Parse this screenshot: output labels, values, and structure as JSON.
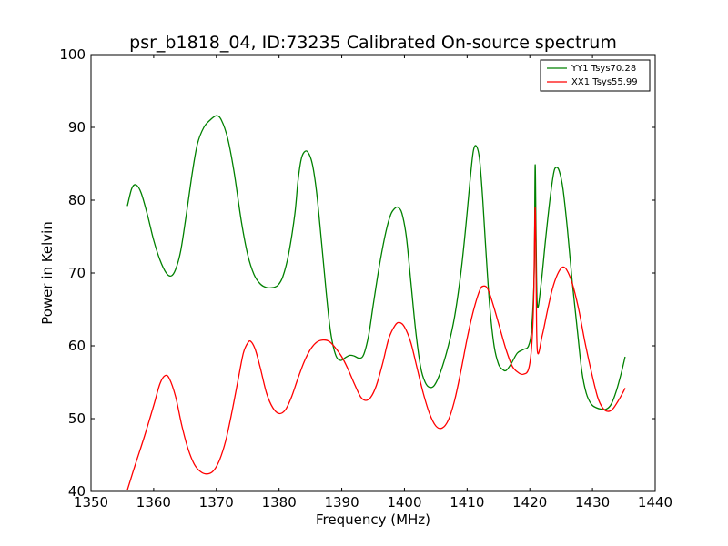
{
  "chart_data": {
    "type": "line",
    "title": "psr_b1818_04, ID:73235 Calibrated On-source spectrum",
    "xlabel": "Frequency (MHz)",
    "ylabel": "Power in Kelvin",
    "xlim": [
      1350,
      1440
    ],
    "ylim": [
      40,
      100
    ],
    "xticks": [
      "1350",
      "1360",
      "1370",
      "1380",
      "1390",
      "1400",
      "1410",
      "1420",
      "1430",
      "1440"
    ],
    "yticks": [
      "40",
      "50",
      "60",
      "70",
      "80",
      "90",
      "100"
    ],
    "grid": false,
    "legend_position": "top-right",
    "series": [
      {
        "name": "YY1 Tsys70.28",
        "color": "#008000",
        "points": [
          [
            1355.8,
            79.2
          ],
          [
            1356.5,
            81.6
          ],
          [
            1357.2,
            82.1
          ],
          [
            1358.0,
            81.0
          ],
          [
            1359.0,
            78.0
          ],
          [
            1360.0,
            74.5
          ],
          [
            1361.0,
            71.8
          ],
          [
            1362.0,
            70.0
          ],
          [
            1362.8,
            69.6
          ],
          [
            1363.5,
            70.5
          ],
          [
            1364.3,
            73.0
          ],
          [
            1365.2,
            78.0
          ],
          [
            1366.2,
            84.0
          ],
          [
            1367.0,
            87.8
          ],
          [
            1368.0,
            90.0
          ],
          [
            1369.0,
            91.0
          ],
          [
            1370.0,
            91.6
          ],
          [
            1370.8,
            91.0
          ],
          [
            1371.8,
            88.5
          ],
          [
            1372.8,
            84.0
          ],
          [
            1374.0,
            77.0
          ],
          [
            1375.0,
            72.5
          ],
          [
            1376.0,
            69.8
          ],
          [
            1377.0,
            68.5
          ],
          [
            1378.0,
            68.0
          ],
          [
            1379.0,
            68.0
          ],
          [
            1379.8,
            68.3
          ],
          [
            1380.6,
            69.5
          ],
          [
            1381.5,
            72.5
          ],
          [
            1382.5,
            78.0
          ],
          [
            1383.0,
            82.5
          ],
          [
            1383.5,
            85.5
          ],
          [
            1384.0,
            86.6
          ],
          [
            1384.6,
            86.6
          ],
          [
            1385.3,
            85.0
          ],
          [
            1386.0,
            81.0
          ],
          [
            1386.8,
            74.0
          ],
          [
            1387.5,
            67.5
          ],
          [
            1388.2,
            62.0
          ],
          [
            1389.0,
            58.8
          ],
          [
            1389.8,
            58.0
          ],
          [
            1390.6,
            58.4
          ],
          [
            1391.3,
            58.7
          ],
          [
            1392.0,
            58.6
          ],
          [
            1392.8,
            58.3
          ],
          [
            1393.5,
            58.8
          ],
          [
            1394.3,
            61.5
          ],
          [
            1395.0,
            65.5
          ],
          [
            1396.0,
            71.0
          ],
          [
            1397.0,
            75.5
          ],
          [
            1397.8,
            78.0
          ],
          [
            1398.5,
            78.9
          ],
          [
            1399.0,
            79.0
          ],
          [
            1399.6,
            78.2
          ],
          [
            1400.3,
            75.0
          ],
          [
            1401.0,
            69.0
          ],
          [
            1401.8,
            62.0
          ],
          [
            1402.6,
            57.0
          ],
          [
            1403.3,
            55.0
          ],
          [
            1404.0,
            54.3
          ],
          [
            1404.8,
            54.6
          ],
          [
            1405.8,
            56.5
          ],
          [
            1407.0,
            60.0
          ],
          [
            1408.0,
            64.0
          ],
          [
            1409.0,
            70.0
          ],
          [
            1409.8,
            76.5
          ],
          [
            1410.5,
            83.0
          ],
          [
            1411.0,
            86.8
          ],
          [
            1411.5,
            87.4
          ],
          [
            1412.0,
            85.5
          ],
          [
            1412.5,
            80.0
          ],
          [
            1413.0,
            73.0
          ],
          [
            1413.6,
            65.5
          ],
          [
            1414.3,
            60.0
          ],
          [
            1415.0,
            57.5
          ],
          [
            1415.6,
            56.8
          ],
          [
            1416.2,
            56.6
          ],
          [
            1417.0,
            57.5
          ],
          [
            1418.0,
            59.0
          ],
          [
            1419.0,
            59.5
          ],
          [
            1419.8,
            60.0
          ],
          [
            1420.3,
            62.5
          ],
          [
            1420.7,
            70.0
          ],
          [
            1420.85,
            84.8
          ],
          [
            1421.0,
            75.0
          ],
          [
            1421.2,
            65.5
          ],
          [
            1421.8,
            68.5
          ],
          [
            1422.5,
            74.5
          ],
          [
            1423.2,
            80.0
          ],
          [
            1423.8,
            83.7
          ],
          [
            1424.2,
            84.5
          ],
          [
            1424.7,
            84.0
          ],
          [
            1425.3,
            81.5
          ],
          [
            1426.0,
            76.0
          ],
          [
            1426.8,
            68.5
          ],
          [
            1427.6,
            62.0
          ],
          [
            1428.3,
            56.5
          ],
          [
            1429.0,
            53.5
          ],
          [
            1429.8,
            52.0
          ],
          [
            1430.6,
            51.5
          ],
          [
            1431.4,
            51.3
          ],
          [
            1432.2,
            51.3
          ],
          [
            1433.0,
            52.0
          ],
          [
            1433.8,
            53.8
          ],
          [
            1434.6,
            56.3
          ],
          [
            1435.2,
            58.5
          ]
        ]
      },
      {
        "name": "XX1 Tsys55.99",
        "color": "#ff0000",
        "points": [
          [
            1355.8,
            40.2
          ],
          [
            1357.0,
            43.5
          ],
          [
            1358.5,
            47.5
          ],
          [
            1360.0,
            51.8
          ],
          [
            1361.0,
            54.8
          ],
          [
            1361.8,
            55.9
          ],
          [
            1362.5,
            55.5
          ],
          [
            1363.5,
            53.0
          ],
          [
            1364.5,
            49.0
          ],
          [
            1365.5,
            45.8
          ],
          [
            1366.5,
            43.7
          ],
          [
            1367.5,
            42.7
          ],
          [
            1368.5,
            42.4
          ],
          [
            1369.5,
            42.8
          ],
          [
            1370.5,
            44.3
          ],
          [
            1371.5,
            47.0
          ],
          [
            1372.5,
            51.0
          ],
          [
            1373.5,
            55.5
          ],
          [
            1374.3,
            59.0
          ],
          [
            1375.0,
            60.4
          ],
          [
            1375.5,
            60.6
          ],
          [
            1376.2,
            59.5
          ],
          [
            1377.0,
            57.0
          ],
          [
            1378.0,
            53.5
          ],
          [
            1379.0,
            51.5
          ],
          [
            1380.0,
            50.7
          ],
          [
            1381.0,
            51.2
          ],
          [
            1382.0,
            53.0
          ],
          [
            1383.0,
            55.5
          ],
          [
            1384.0,
            57.8
          ],
          [
            1385.0,
            59.5
          ],
          [
            1386.0,
            60.5
          ],
          [
            1387.0,
            60.8
          ],
          [
            1388.0,
            60.6
          ],
          [
            1389.0,
            59.7
          ],
          [
            1390.0,
            58.5
          ],
          [
            1391.0,
            56.8
          ],
          [
            1392.0,
            54.8
          ],
          [
            1393.0,
            53.0
          ],
          [
            1393.8,
            52.5
          ],
          [
            1394.6,
            52.9
          ],
          [
            1395.5,
            54.5
          ],
          [
            1396.5,
            57.5
          ],
          [
            1397.5,
            61.0
          ],
          [
            1398.5,
            62.8
          ],
          [
            1399.2,
            63.2
          ],
          [
            1400.0,
            62.6
          ],
          [
            1401.0,
            60.5
          ],
          [
            1402.0,
            57.0
          ],
          [
            1403.0,
            53.5
          ],
          [
            1404.0,
            50.7
          ],
          [
            1405.0,
            49.0
          ],
          [
            1406.0,
            48.7
          ],
          [
            1407.0,
            49.8
          ],
          [
            1408.0,
            52.5
          ],
          [
            1409.0,
            56.5
          ],
          [
            1410.0,
            61.0
          ],
          [
            1411.0,
            64.8
          ],
          [
            1412.0,
            67.6
          ],
          [
            1412.6,
            68.2
          ],
          [
            1413.3,
            67.8
          ],
          [
            1414.2,
            65.5
          ],
          [
            1415.2,
            62.5
          ],
          [
            1416.2,
            59.5
          ],
          [
            1417.2,
            57.2
          ],
          [
            1418.2,
            56.3
          ],
          [
            1419.0,
            56.1
          ],
          [
            1419.8,
            56.8
          ],
          [
            1420.3,
            60.0
          ],
          [
            1420.6,
            66.0
          ],
          [
            1420.85,
            78.9
          ],
          [
            1421.0,
            70.0
          ],
          [
            1421.2,
            59.3
          ],
          [
            1422.0,
            61.5
          ],
          [
            1422.8,
            64.8
          ],
          [
            1423.6,
            67.8
          ],
          [
            1424.4,
            69.8
          ],
          [
            1425.2,
            70.8
          ],
          [
            1425.9,
            70.4
          ],
          [
            1426.8,
            68.5
          ],
          [
            1427.8,
            65.0
          ],
          [
            1428.8,
            60.5
          ],
          [
            1429.8,
            56.5
          ],
          [
            1430.8,
            53.0
          ],
          [
            1431.6,
            51.5
          ],
          [
            1432.4,
            51.0
          ],
          [
            1433.2,
            51.3
          ],
          [
            1434.0,
            52.3
          ],
          [
            1434.8,
            53.5
          ],
          [
            1435.2,
            54.2
          ]
        ]
      }
    ]
  }
}
